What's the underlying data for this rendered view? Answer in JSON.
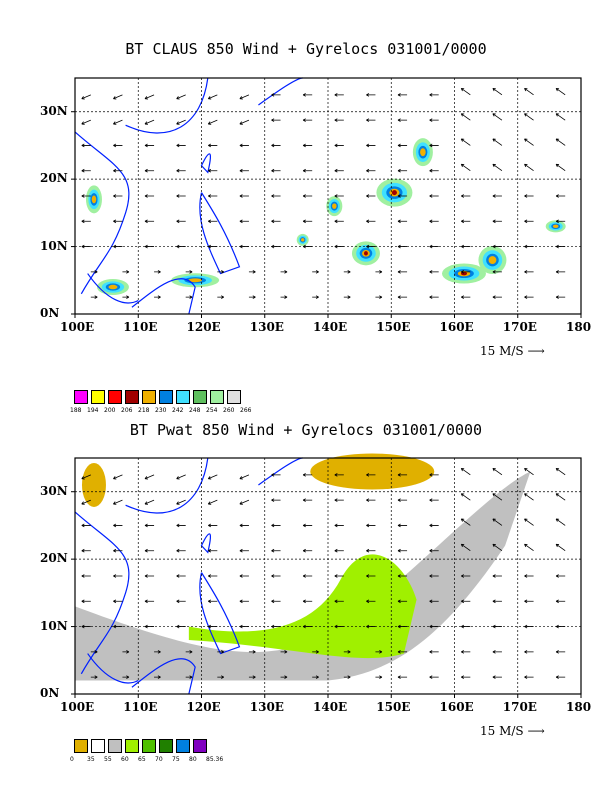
{
  "panels": [
    {
      "title": "BT CLAUS 850 Wind + Gyrelocs 031001/0000",
      "variable": "CLAUS brightness temperature",
      "lat_labels": [
        "30N",
        "20N",
        "10N",
        "0N"
      ],
      "lon_labels": [
        "100E",
        "110E",
        "120E",
        "130E",
        "140E",
        "150E",
        "160E",
        "170E",
        "180"
      ],
      "wind_scale_label": "15 M/S",
      "colorbar": {
        "labels": [
          "188",
          "194",
          "200",
          "206",
          "218",
          "230",
          "242",
          "248",
          "254",
          "260",
          "266"
        ],
        "colors": [
          "#ff00ff",
          "#ffff00",
          "#ff0000",
          "#a00000",
          "#f0b000",
          "#0080e0",
          "#40e0ff",
          "#60c060",
          "#a0f0a0",
          "#e0e0e0"
        ]
      },
      "wind_vectors": {
        "u": -6,
        "v": 0,
        "description": "850 hPa easterly trade winds across the Pacific, westerlies south of 10N near Asia"
      }
    },
    {
      "title": "BT Pwat 850 Wind + Gyrelocs 031001/0000",
      "variable": "Precipitable water",
      "lat_labels": [
        "30N",
        "20N",
        "10N",
        "0N"
      ],
      "lon_labels": [
        "100E",
        "110E",
        "120E",
        "130E",
        "140E",
        "150E",
        "160E",
        "170E",
        "180"
      ],
      "wind_scale_label": "15 M/S",
      "colorbar": {
        "labels": [
          "0",
          "35",
          "55",
          "60",
          "65",
          "70",
          "75",
          "80",
          "85.36"
        ],
        "colors": [
          "#e0b000",
          "#ffffff",
          "#c0c0c0",
          "#a0f000",
          "#50c000",
          "#208000",
          "#0080e0",
          "#8000c0"
        ]
      }
    }
  ]
}
